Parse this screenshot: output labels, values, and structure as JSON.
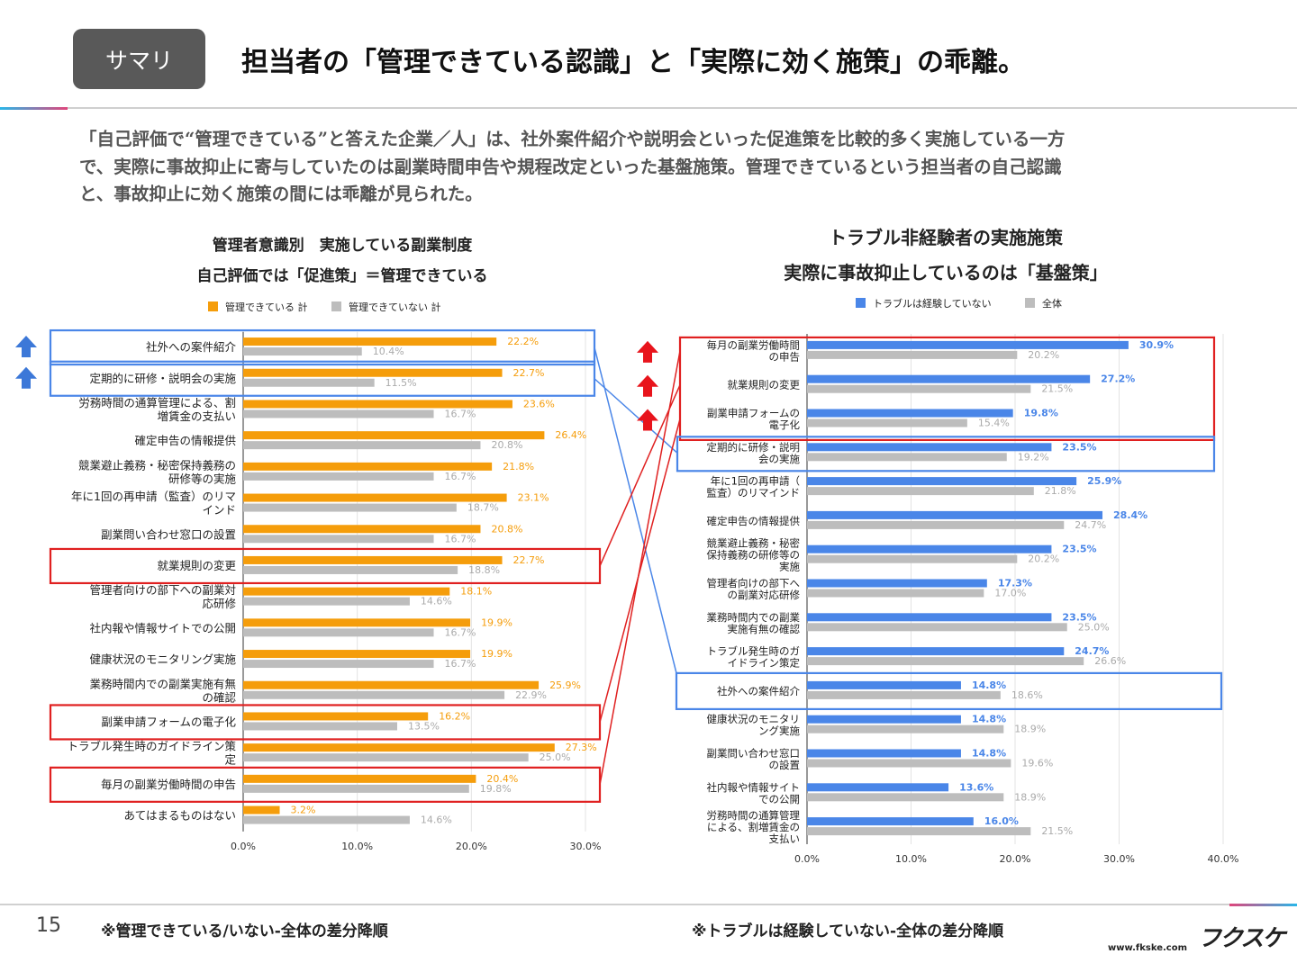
{
  "header": {
    "badge": "サマリ",
    "headline": "担当者の「管理できている認識」と「実際に効く施策」の乖離。"
  },
  "summary": {
    "lines": [
      "「自己評価で“管理できている”と答えた企業／人」は、社外案件紹介や説明会といった促進策を比較的多く実施している一方",
      "で、実際に事故抑止に寄与していたのは副業時間申告や規程改定といった基盤施策。管理できているという担当者の自己認識",
      "と、事故抑止に効く施策の間には乖離が見られた。"
    ]
  },
  "left_title": {
    "line1": "管理者意識別　実施している副業制度",
    "line2": "自己評価では「促進策」＝管理できている"
  },
  "right_title": {
    "line1": "トラブル非経験者の実施施策",
    "line2": "実際に事故抑止しているのは「基盤策」"
  },
  "colors": {
    "orange": "#f59d0b",
    "gray": "#bdbdbd",
    "blue": "#4a86e8",
    "box_blue": "#4a86e8",
    "box_red": "#e02020",
    "arrow_blue": "#3c78d8",
    "arrow_red": "#e8141c"
  },
  "chart_data": [
    {
      "type": "bar",
      "orientation": "horizontal",
      "categories": [
        [
          "社外への案件紹介"
        ],
        [
          "定期的に研修・説明会の実施"
        ],
        [
          "労務時間の通算管理による、割",
          "増賃金の支払い"
        ],
        [
          "確定申告の情報提供"
        ],
        [
          "競業避止義務・秘密保持義務の",
          "研修等の実施"
        ],
        [
          "年に1回の再申請（監査）のリマ",
          "インド"
        ],
        [
          "副業問い合わせ窓口の設置"
        ],
        [
          "就業規則の変更"
        ],
        [
          "管理者向けの部下への副業対",
          "応研修"
        ],
        [
          "社内報や情報サイトでの公開"
        ],
        [
          "健康状況のモニタリング実施"
        ],
        [
          "業務時間内での副業実施有無",
          "の確認"
        ],
        [
          "副業申請フォームの電子化"
        ],
        [
          "トラブル発生時のガイドライン策",
          "定"
        ],
        [
          "毎月の副業労働時間の申告"
        ],
        [
          "あてはまるものはない"
        ]
      ],
      "series": [
        {
          "name": "管理できている 計",
          "values": [
            22.2,
            22.7,
            23.6,
            26.4,
            21.8,
            23.1,
            20.8,
            22.7,
            18.1,
            19.9,
            19.9,
            25.9,
            16.2,
            27.3,
            20.4,
            3.2
          ]
        },
        {
          "name": "管理できていない 計",
          "values": [
            10.4,
            11.5,
            16.7,
            20.8,
            16.7,
            18.7,
            16.7,
            18.8,
            14.6,
            16.7,
            16.7,
            22.9,
            13.5,
            25.0,
            19.8,
            14.6
          ]
        }
      ],
      "value_labels": [
        [
          "22.2%",
          "22.7%",
          "23.6%",
          "26.4%",
          "21.8%",
          "23.1%",
          "20.8%",
          "22.7%",
          "18.1%",
          "19.9%",
          "19.9%",
          "25.9%",
          "16.2%",
          "27.3%",
          "20.4%",
          "3.2%"
        ],
        [
          "10.4%",
          "11.5%",
          "16.7%",
          "20.8%",
          "16.7%",
          "18.7%",
          "16.7%",
          "18.8%",
          "14.6%",
          "16.7%",
          "16.7%",
          "22.9%",
          "13.5%",
          "25.0%",
          "19.8%",
          "14.6%"
        ]
      ],
      "xlim": [
        0,
        30
      ],
      "ticks": [
        "0.0%",
        "10.0%",
        "20.0%",
        "30.0%"
      ],
      "legend_position": "top",
      "highlighted_blue": [
        0,
        1
      ],
      "highlighted_red": [
        7,
        12,
        14
      ],
      "footnote": "※管理できている/いない-全体の差分降順"
    },
    {
      "type": "bar",
      "orientation": "horizontal",
      "categories": [
        [
          "毎月の副業労働時間",
          "の申告"
        ],
        [
          "就業規則の変更"
        ],
        [
          "副業申請フォームの",
          "電子化"
        ],
        [
          "定期的に研修・説明",
          "会の実施"
        ],
        [
          "年に1回の再申請（",
          "監査）のリマインド"
        ],
        [
          "確定申告の情報提供"
        ],
        [
          "競業避止義務・秘密",
          "保持義務の研修等の",
          "実施"
        ],
        [
          "管理者向けの部下へ",
          "の副業対応研修"
        ],
        [
          "業務時間内での副業",
          "実施有無の確認"
        ],
        [
          "トラブル発生時のガ",
          "イドライン策定"
        ],
        [
          "社外への案件紹介"
        ],
        [
          "健康状況のモニタリ",
          "ング実施"
        ],
        [
          "副業問い合わせ窓口",
          "の設置"
        ],
        [
          "社内報や情報サイト",
          "での公開"
        ],
        [
          "労務時間の通算管理",
          "による、割増賃金の",
          "支払い"
        ]
      ],
      "series": [
        {
          "name": "トラブルは経験していない",
          "values": [
            30.9,
            27.2,
            19.8,
            23.5,
            25.9,
            28.4,
            23.5,
            17.3,
            23.5,
            24.7,
            14.8,
            14.8,
            14.8,
            13.6,
            16.0
          ]
        },
        {
          "name": "全体",
          "values": [
            20.2,
            21.5,
            15.4,
            19.2,
            21.8,
            24.7,
            20.2,
            17.0,
            25.0,
            26.6,
            18.6,
            18.9,
            19.6,
            18.9,
            21.5
          ]
        }
      ],
      "value_labels": [
        [
          "30.9%",
          "27.2%",
          "19.8%",
          "23.5%",
          "25.9%",
          "28.4%",
          "23.5%",
          "17.3%",
          "23.5%",
          "24.7%",
          "14.8%",
          "14.8%",
          "14.8%",
          "13.6%",
          "16.0%"
        ],
        [
          "20.2%",
          "21.5%",
          "15.4%",
          "19.2%",
          "21.8%",
          "24.7%",
          "20.2%",
          "17.0%",
          "25.0%",
          "26.6%",
          "18.6%",
          "18.9%",
          "19.6%",
          "18.9%",
          "21.5%"
        ]
      ],
      "xlim": [
        0,
        40
      ],
      "ticks": [
        "0.0%",
        "10.0%",
        "20.0%",
        "30.0%",
        "40.0%"
      ],
      "legend_position": "top",
      "highlighted_red": [
        0,
        1,
        2
      ],
      "highlighted_blue": [
        3,
        10
      ],
      "footnote": "※トラブルは経験していない-全体の差分降順"
    }
  ],
  "footer": {
    "page": "15",
    "logo": "フクスケ",
    "url": "www.fkske.com"
  }
}
